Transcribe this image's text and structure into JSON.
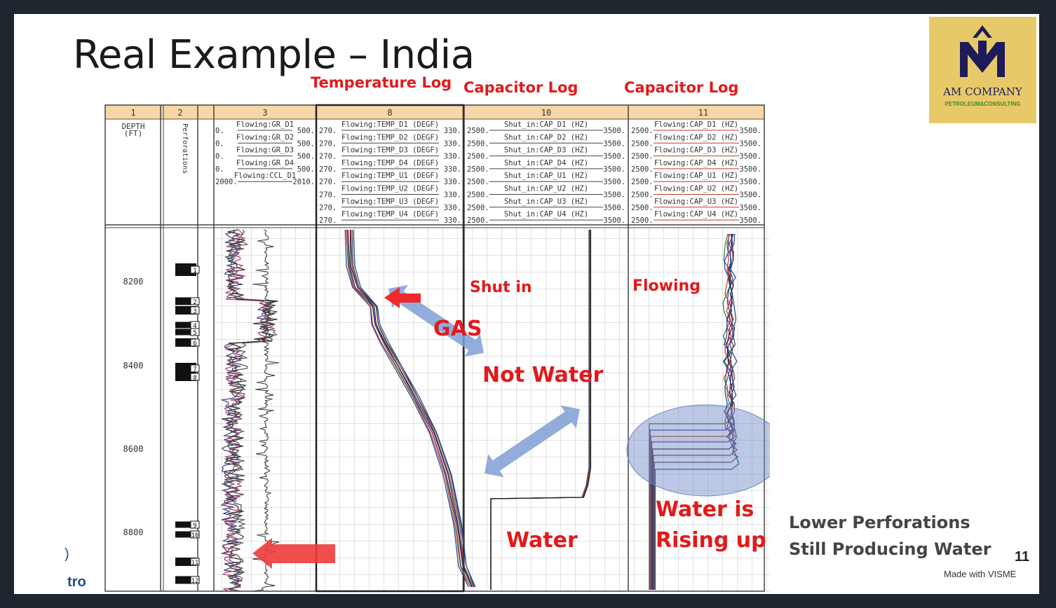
{
  "slide": {
    "title": "Real Example – India",
    "temperature_header": "Temperature Log",
    "capacitor_header_1": "Capacitor Log",
    "capacitor_header_2": "Capacitor Log",
    "label_shut_in": "Shut in",
    "label_flowing": "Flowing",
    "label_gas": "GAS",
    "label_not_water": "Not Water",
    "label_water": "Water",
    "label_rising_1": "Water is",
    "label_rising_2": "Rising up",
    "note_1": "Lower Perforations",
    "note_2": "Still Producing Water",
    "footer_fragment": "tro",
    "page_number": "11",
    "made_with": "Made with VISME"
  },
  "logo": {
    "name": "AM COMPANY",
    "subtitle": "PETROLEUM&CONSULTING",
    "bg_color": "#e8c96a",
    "mark_color": "#1e1b5a"
  },
  "colors": {
    "accent_red": "#e11a1a",
    "arrow_blue": "#7f9fd6",
    "header_bar": "#f7d7a8"
  },
  "log": {
    "track_numbers": [
      "1",
      "2",
      "3",
      "8",
      "10",
      "11"
    ],
    "depth_header": [
      "DEPTH",
      "(FT)"
    ],
    "perforations_label": "Perforations",
    "gr_lines": [
      {
        "name": "Flowing:GR_D1",
        "min": "0.",
        "max": "500."
      },
      {
        "name": "Flowing:GR_D2",
        "min": "0.",
        "max": "500."
      },
      {
        "name": "Flowing:GR_D3",
        "min": "0.",
        "max": "500."
      },
      {
        "name": "Flowing:GR_D4",
        "min": "0.",
        "max": "500."
      },
      {
        "name": "Flowing:CCL_D1",
        "min": "2000.",
        "max": "2010."
      }
    ],
    "temp_lines": [
      {
        "name": "Flowing:TEMP_D1 (DEGF)",
        "min": "270.",
        "max": "330."
      },
      {
        "name": "Flowing:TEMP_D2 (DEGF)",
        "min": "270.",
        "max": "330."
      },
      {
        "name": "Flowing:TEMP_D3 (DEGF)",
        "min": "270.",
        "max": "330."
      },
      {
        "name": "Flowing:TEMP_D4 (DEGF)",
        "min": "270.",
        "max": "330."
      },
      {
        "name": "Flowing:TEMP_U1 (DEGF)",
        "min": "270.",
        "max": "330."
      },
      {
        "name": "Flowing:TEMP_U2 (DEGF)",
        "min": "270.",
        "max": "330."
      },
      {
        "name": "Flowing:TEMP_U3 (DEGF)",
        "min": "270.",
        "max": "330."
      },
      {
        "name": "Flowing:TEMP_U4 (DEGF)",
        "min": "270.",
        "max": "330."
      }
    ],
    "shut_lines": [
      {
        "name": "Shut_in:CAP_D1 (HZ)",
        "min": "2500.",
        "max": "3500."
      },
      {
        "name": "Shut_in:CAP_D2 (HZ)",
        "min": "2500.",
        "max": "3500."
      },
      {
        "name": "Shut_in:CAP_D3 (HZ)",
        "min": "2500.",
        "max": "3500."
      },
      {
        "name": "Shut_in:CAP_D4 (HZ)",
        "min": "2500.",
        "max": "3500."
      },
      {
        "name": "Shut_in:CAP_U1 (HZ)",
        "min": "2500.",
        "max": "3500."
      },
      {
        "name": "Shut_in:CAP_U2 (HZ)",
        "min": "2500.",
        "max": "3500."
      },
      {
        "name": "Shut_in:CAP_U3 (HZ)",
        "min": "2500.",
        "max": "3500."
      },
      {
        "name": "Shut_in:CAP_U4 (HZ)",
        "min": "2500.",
        "max": "3500."
      }
    ],
    "flow_lines": [
      {
        "name": "Flowing:CAP_D1 (HZ)",
        "min": "2500.",
        "max": "3500."
      },
      {
        "name": "Flowing:CAP_D2 (HZ)",
        "min": "2500.",
        "max": "3500."
      },
      {
        "name": "Flowing:CAP_D3 (HZ)",
        "min": "2500.",
        "max": "3500."
      },
      {
        "name": "Flowing:CAP_D4 (HZ)",
        "min": "2500.",
        "max": "3500."
      },
      {
        "name": "Flowing:CAP_U1 (HZ)",
        "min": "2500.",
        "max": "3500."
      },
      {
        "name": "Flowing:CAP_U2 (HZ)",
        "min": "2500.",
        "max": "3500."
      },
      {
        "name": "Flowing:CAP_U3 (HZ)",
        "min": "2500.",
        "max": "3500."
      },
      {
        "name": "Flowing:CAP_U4 (HZ)",
        "min": "2500.",
        "max": "3500."
      }
    ],
    "depth_ticks": [
      "8200",
      "8400",
      "8600",
      "8800"
    ],
    "perforation_numbers": [
      "1",
      "2",
      "3",
      "4",
      "5",
      "6",
      "7",
      "8",
      "9",
      "10",
      "11",
      "12"
    ]
  }
}
